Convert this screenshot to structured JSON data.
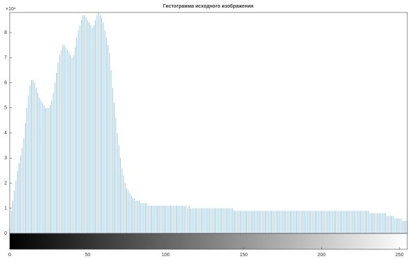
{
  "chart_data": {
    "type": "bar",
    "title": "Гистограмма исходного изображения",
    "y_exponent": "×10⁴",
    "x": [
      0,
      1,
      2,
      3,
      4,
      5,
      6,
      7,
      8,
      9,
      10,
      11,
      12,
      13,
      14,
      15,
      16,
      17,
      18,
      19,
      20,
      21,
      22,
      23,
      24,
      25,
      26,
      27,
      28,
      29,
      30,
      31,
      32,
      33,
      34,
      35,
      36,
      37,
      38,
      39,
      40,
      41,
      42,
      43,
      44,
      45,
      46,
      47,
      48,
      49,
      50,
      51,
      52,
      53,
      54,
      55,
      56,
      57,
      58,
      59,
      60,
      61,
      62,
      63,
      64,
      65,
      66,
      67,
      68,
      69,
      70,
      71,
      72,
      73,
      74,
      75,
      76,
      77,
      78,
      79,
      80,
      81,
      82,
      83,
      84,
      85,
      86,
      87,
      88,
      89,
      90,
      91,
      92,
      93,
      94,
      95,
      96,
      97,
      98,
      99,
      100,
      101,
      102,
      103,
      104,
      105,
      106,
      107,
      108,
      109,
      110,
      111,
      112,
      113,
      114,
      115,
      116,
      117,
      118,
      119,
      120,
      121,
      122,
      123,
      124,
      125,
      126,
      127,
      128,
      129,
      130,
      131,
      132,
      133,
      134,
      135,
      136,
      137,
      138,
      139,
      140,
      141,
      142,
      143,
      144,
      145,
      146,
      147,
      148,
      149,
      150,
      151,
      152,
      153,
      154,
      155,
      156,
      157,
      158,
      159,
      160,
      161,
      162,
      163,
      164,
      165,
      166,
      167,
      168,
      169,
      170,
      171,
      172,
      173,
      174,
      175,
      176,
      177,
      178,
      179,
      180,
      181,
      182,
      183,
      184,
      185,
      186,
      187,
      188,
      189,
      190,
      191,
      192,
      193,
      194,
      195,
      196,
      197,
      198,
      199,
      200,
      201,
      202,
      203,
      204,
      205,
      206,
      207,
      208,
      209,
      210,
      211,
      212,
      213,
      214,
      215,
      216,
      217,
      218,
      219,
      220,
      221,
      222,
      223,
      224,
      225,
      226,
      227,
      228,
      229,
      230,
      231,
      232,
      233,
      234,
      235,
      236,
      237,
      238,
      239,
      240,
      241,
      242,
      243,
      244,
      245,
      246,
      247,
      248,
      249,
      250,
      251,
      252,
      253,
      254,
      255
    ],
    "values": [
      0.2,
      0.9,
      1.3,
      1.7,
      2.1,
      2.5,
      2.8,
      3.1,
      3.4,
      3.8,
      4.4,
      5.0,
      5.5,
      5.9,
      6.1,
      6.1,
      6.0,
      5.8,
      5.6,
      5.4,
      5.3,
      5.2,
      5.1,
      5.0,
      5.0,
      5.0,
      5.1,
      5.3,
      5.6,
      6.0,
      6.4,
      6.8,
      7.1,
      7.3,
      7.5,
      7.5,
      7.4,
      7.3,
      7.2,
      7.1,
      7.0,
      7.1,
      7.4,
      7.8,
      8.1,
      8.3,
      8.5,
      8.7,
      8.7,
      8.6,
      8.5,
      8.4,
      8.3,
      8.2,
      8.3,
      8.5,
      8.7,
      8.8,
      8.7,
      8.6,
      8.4,
      8.1,
      7.8,
      7.5,
      7.2,
      6.5,
      5.8,
      5.2,
      4.6,
      4.0,
      3.5,
      3.0,
      2.6,
      2.3,
      2.0,
      1.8,
      1.7,
      1.6,
      1.5,
      1.4,
      1.4,
      1.3,
      1.3,
      1.3,
      1.2,
      1.2,
      1.2,
      1.2,
      1.2,
      1.1,
      1.1,
      1.1,
      1.1,
      1.1,
      1.1,
      1.1,
      1.1,
      1.1,
      1.1,
      1.1,
      1.1,
      1.1,
      1.1,
      1.1,
      1.1,
      1.1,
      1.1,
      1.1,
      1.1,
      1.1,
      1.1,
      1.1,
      1.1,
      1.1,
      1.0,
      1.1,
      1.0,
      1.0,
      1.0,
      1.0,
      1.0,
      1.0,
      1.0,
      1.0,
      1.0,
      1.0,
      1.0,
      1.0,
      1.0,
      1.0,
      1.0,
      1.0,
      1.0,
      1.0,
      1.0,
      1.0,
      1.0,
      1.0,
      1.0,
      1.0,
      1.0,
      1.0,
      1.0,
      1.0,
      0.9,
      0.9,
      0.9,
      0.9,
      0.9,
      0.9,
      0.9,
      0.9,
      0.9,
      0.9,
      0.9,
      0.9,
      0.9,
      0.9,
      0.9,
      0.9,
      0.9,
      0.9,
      0.9,
      0.9,
      0.9,
      0.9,
      0.9,
      0.9,
      0.9,
      0.9,
      0.9,
      0.9,
      0.9,
      0.9,
      0.9,
      0.9,
      0.9,
      0.9,
      0.9,
      0.9,
      0.9,
      0.9,
      0.9,
      0.9,
      0.9,
      0.9,
      0.9,
      0.9,
      0.9,
      0.9,
      0.9,
      0.9,
      0.9,
      0.9,
      0.9,
      0.9,
      0.9,
      0.9,
      0.9,
      0.9,
      0.9,
      0.9,
      0.9,
      0.9,
      0.9,
      0.9,
      0.9,
      0.9,
      0.9,
      0.9,
      0.9,
      0.9,
      0.9,
      0.9,
      0.9,
      0.9,
      0.9,
      0.9,
      0.9,
      0.9,
      0.9,
      0.9,
      0.9,
      0.9,
      0.9,
      0.9,
      0.9,
      0.9,
      0.9,
      0.9,
      0.9,
      0.8,
      0.8,
      0.8,
      0.8,
      0.8,
      0.8,
      0.8,
      0.8,
      0.8,
      0.8,
      0.8,
      0.7,
      0.7,
      0.7,
      0.7,
      0.7,
      0.6,
      0.6,
      0.6,
      0.6,
      0.6,
      0.5,
      0.5,
      0.5,
      0.5
    ],
    "color": "#8fc3ea",
    "xlim": [
      0,
      255
    ],
    "xticks": [
      0,
      50,
      100,
      150,
      200,
      250
    ],
    "ylim": [
      0,
      8.8
    ],
    "yticks": [
      0,
      1,
      2,
      3,
      4,
      5,
      6,
      7,
      8
    ]
  }
}
